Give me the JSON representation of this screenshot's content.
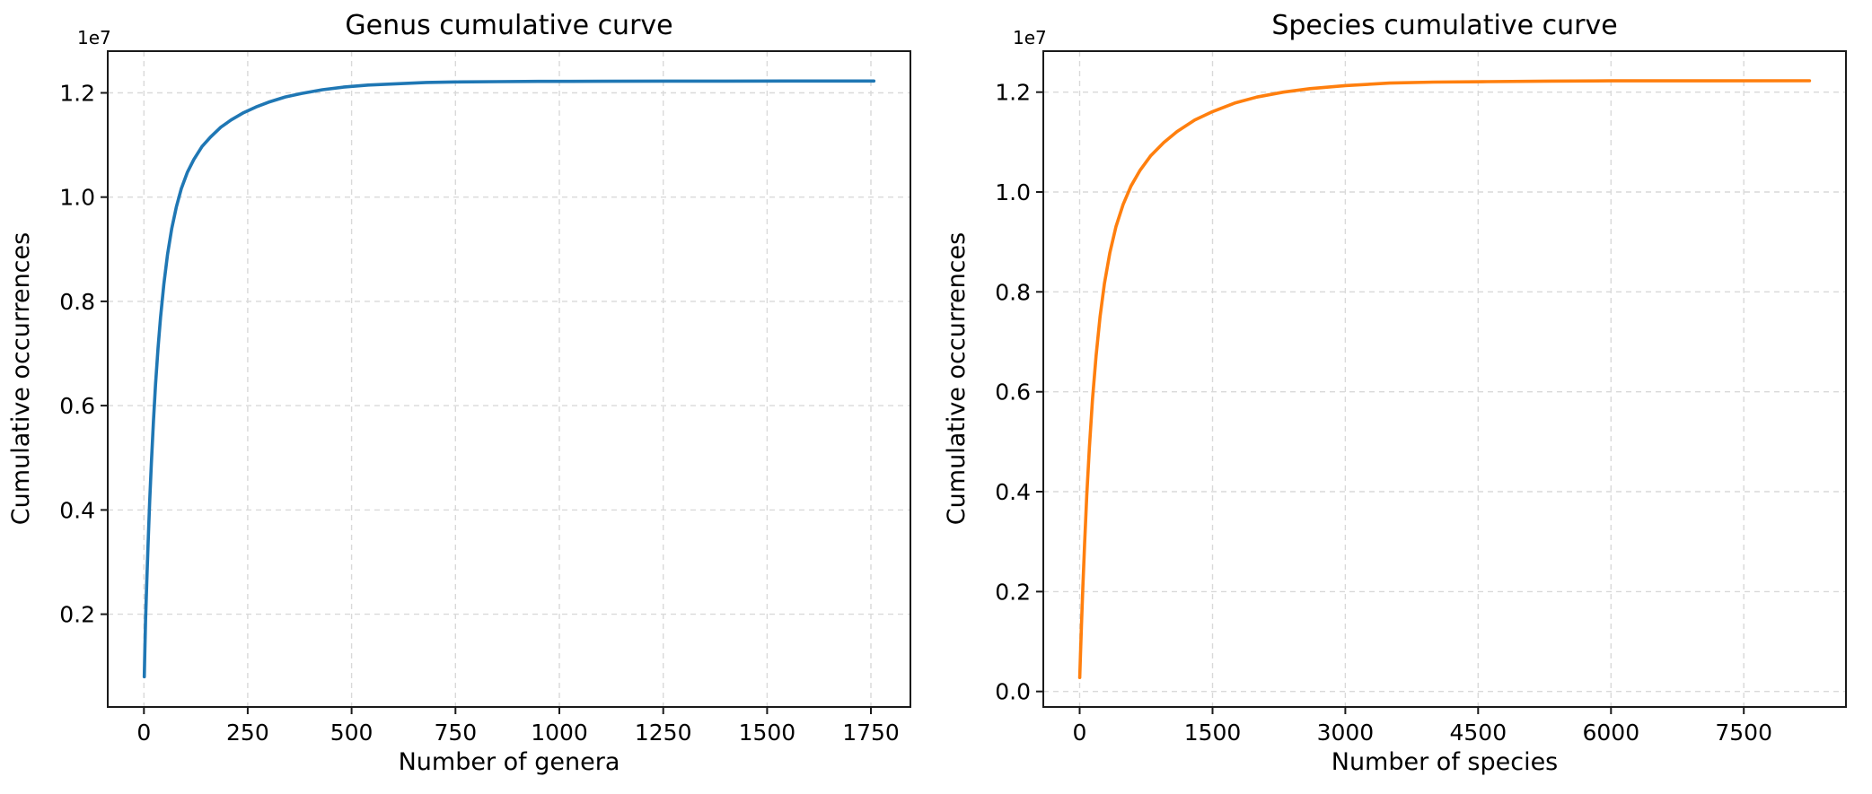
{
  "page": {
    "background": "#ffffff"
  },
  "chart_data": [
    {
      "id": "genus-cumulative-curve",
      "type": "line",
      "title": "Genus cumulative curve",
      "xlabel": "Number of genera",
      "ylabel": "Cumulative occurrences",
      "offset_text": "1e7",
      "y_unit_multiplier": 10000000,
      "line_color": "#1f77b4",
      "grid": true,
      "legend": null,
      "xlim": [
        -87,
        1845
      ],
      "ylim": [
        0.022,
        1.28
      ],
      "xticks": [
        0,
        250,
        500,
        750,
        1000,
        1250,
        1500,
        1750
      ],
      "xtick_labels": [
        "0",
        "250",
        "500",
        "750",
        "1000",
        "1250",
        "1500",
        "1750"
      ],
      "yticks": [
        0.2,
        0.4,
        0.6,
        0.8,
        1.0,
        1.2
      ],
      "ytick_labels": [
        "0.2",
        "0.4",
        "0.6",
        "0.8",
        "1.0",
        "1.2"
      ],
      "x": [
        1,
        2,
        4,
        7,
        10,
        14,
        18,
        23,
        28,
        34,
        40,
        48,
        57,
        67,
        78,
        90,
        105,
        120,
        140,
        160,
        185,
        210,
        240,
        270,
        300,
        340,
        380,
        430,
        480,
        540,
        600,
        680,
        760,
        850,
        950,
        1100,
        1250,
        1400,
        1550,
        1757
      ],
      "y": [
        0.08,
        0.12,
        0.187,
        0.263,
        0.333,
        0.416,
        0.49,
        0.57,
        0.64,
        0.71,
        0.769,
        0.833,
        0.89,
        0.94,
        0.981,
        1.016,
        1.048,
        1.072,
        1.097,
        1.115,
        1.134,
        1.148,
        1.162,
        1.173,
        1.182,
        1.192,
        1.199,
        1.206,
        1.211,
        1.215,
        1.217,
        1.22,
        1.221,
        1.2215,
        1.222,
        1.2222,
        1.2225,
        1.2226,
        1.2227,
        1.2227
      ]
    },
    {
      "id": "species-cumulative-curve",
      "type": "line",
      "title": "Species cumulative curve",
      "xlabel": "Number of species",
      "ylabel": "Cumulative occurrences",
      "offset_text": "1e7",
      "y_unit_multiplier": 10000000,
      "line_color": "#ff7f0e",
      "grid": true,
      "legend": null,
      "xlim": [
        -411,
        8654
      ],
      "ylim": [
        -0.031,
        1.282
      ],
      "xticks": [
        0,
        1500,
        3000,
        4500,
        6000,
        7500
      ],
      "xtick_labels": [
        "0",
        "1500",
        "3000",
        "4500",
        "6000",
        "7500"
      ],
      "yticks": [
        0.0,
        0.2,
        0.4,
        0.6,
        0.8,
        1.0,
        1.2
      ],
      "ytick_labels": [
        "0.0",
        "0.2",
        "0.4",
        "0.6",
        "0.8",
        "1.0",
        "1.2"
      ],
      "x": [
        1,
        5,
        10,
        20,
        35,
        55,
        80,
        110,
        145,
        185,
        230,
        280,
        340,
        410,
        490,
        580,
        680,
        800,
        950,
        1100,
        1300,
        1500,
        1750,
        2000,
        2300,
        2600,
        3000,
        3500,
        4000,
        4600,
        5300,
        6000,
        7000,
        8242
      ],
      "y": [
        0.028,
        0.051,
        0.079,
        0.132,
        0.206,
        0.295,
        0.392,
        0.49,
        0.585,
        0.672,
        0.75,
        0.817,
        0.878,
        0.931,
        0.975,
        1.012,
        1.043,
        1.072,
        1.099,
        1.121,
        1.144,
        1.161,
        1.178,
        1.19,
        1.2,
        1.207,
        1.213,
        1.218,
        1.22,
        1.221,
        1.222,
        1.2225,
        1.2226,
        1.2227
      ]
    }
  ]
}
